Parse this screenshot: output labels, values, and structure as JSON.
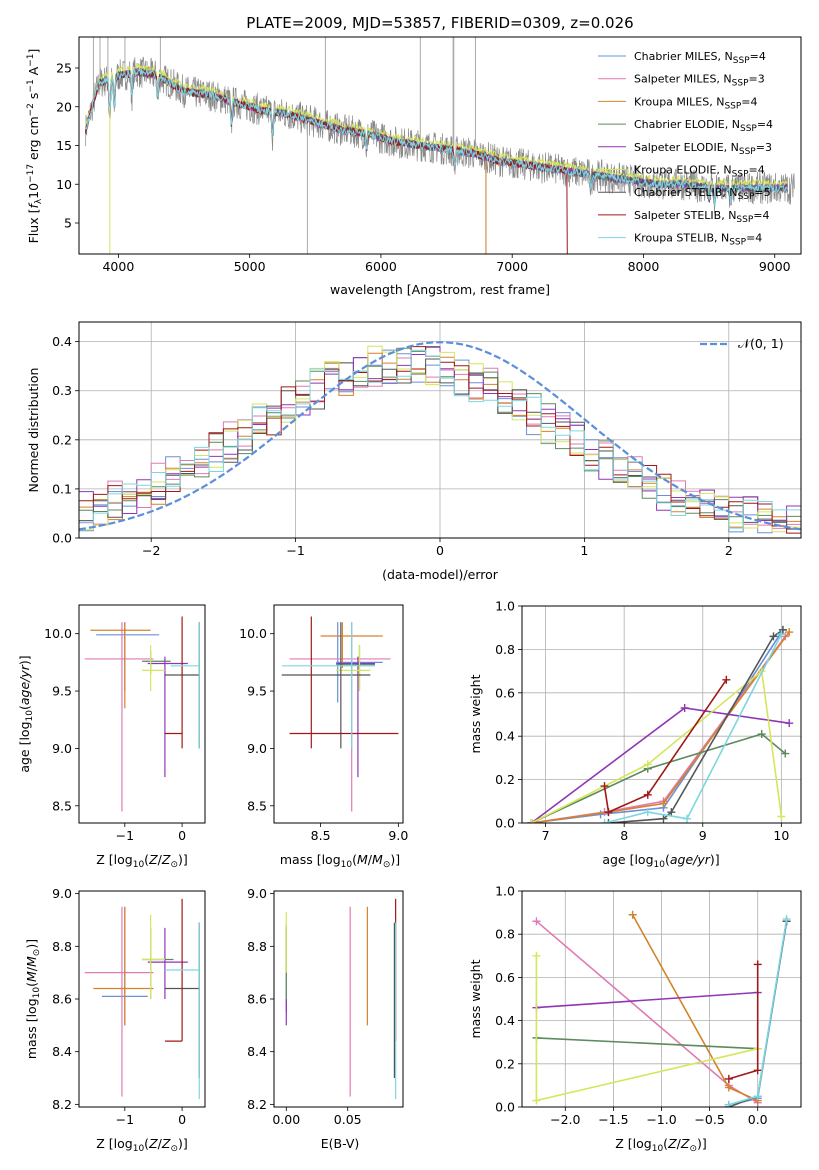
{
  "title": "PLATE=2009, MJD=53857, FIBERID=0309, z=0.026",
  "series_colors": [
    "#6a8fd8",
    "#e07ab4",
    "#d4832a",
    "#5c8a5c",
    "#9035b5",
    "#d6e65a",
    "#555555",
    "#a01818",
    "#7cd6e0"
  ],
  "models": [
    {
      "name": "Chabrier MILES, N",
      "sub": "SSP",
      "suffix": "=4"
    },
    {
      "name": "Salpeter MILES, N",
      "sub": "SSP",
      "suffix": "=3"
    },
    {
      "name": "Kroupa MILES, N",
      "sub": "SSP",
      "suffix": "=4"
    },
    {
      "name": "Chabrier ELODIE, N",
      "sub": "SSP",
      "suffix": "=4"
    },
    {
      "name": "Salpeter ELODIE, N",
      "sub": "SSP",
      "suffix": "=3"
    },
    {
      "name": "Kroupa ELODIE, N",
      "sub": "SSP",
      "suffix": "=4"
    },
    {
      "name": "Chabrier STELIB, N",
      "sub": "SSP",
      "suffix": "=5"
    },
    {
      "name": "Salpeter STELIB, N",
      "sub": "SSP",
      "suffix": "=4"
    },
    {
      "name": "Kroupa STELIB, N",
      "sub": "SSP",
      "suffix": "=4"
    }
  ],
  "panel1": {
    "xlabel": "wavelength [Angstrom, rest frame]",
    "ylabel": "Flux [f_λ 10^-17 erg cm^-2 s^-1 A^-1]",
    "xlim": [
      3700,
      9200
    ],
    "ylim": [
      1,
      29
    ],
    "xticks": [
      "4000",
      "5000",
      "6000",
      "7000",
      "8000",
      "9000"
    ],
    "yticks": [
      "5",
      "10",
      "15",
      "20",
      "25"
    ]
  },
  "panel2": {
    "xlabel": "(data-model)/error",
    "ylabel": "Normed distribution",
    "xlim": [
      -2.5,
      2.5
    ],
    "ylim": [
      0,
      0.44
    ],
    "xticks": [
      "−2",
      "−1",
      "0",
      "1",
      "2"
    ],
    "yticks": [
      "0.0",
      "0.1",
      "0.2",
      "0.3",
      "0.4"
    ],
    "legend": "𝒩(0, 1)"
  },
  "panel_age_z": {
    "xlabel": "Z [log10(Z/Z⊙)]",
    "ylabel": "age [log10(age/yr)]",
    "xlim": [
      -1.8,
      0.4
    ],
    "ylim": [
      8.35,
      10.25
    ],
    "xticks": [
      "−1",
      "0"
    ],
    "yticks": [
      "8.5",
      "9.0",
      "9.5",
      "10.0"
    ]
  },
  "panel_age_mass": {
    "xlabel": "mass [log10(M/M⊙)]",
    "ylabel": "",
    "xlim": [
      8.2,
      9.03
    ],
    "ylim": [
      8.35,
      10.25
    ],
    "xticks": [
      "8.5",
      "9.0"
    ],
    "yticks": [
      "8.5",
      "9.0",
      "9.5",
      "10.0"
    ]
  },
  "panel_mw_age": {
    "xlabel": "age [log10(age/yr)]",
    "ylabel": "mass weight",
    "xlim": [
      6.7,
      10.25
    ],
    "ylim": [
      0,
      1
    ],
    "xticks": [
      "7",
      "8",
      "9",
      "10"
    ],
    "yticks": [
      "0.0",
      "0.2",
      "0.4",
      "0.6",
      "0.8",
      "1.0"
    ]
  },
  "panel_mass_z": {
    "xlabel": "Z [log10(Z/Z⊙)]",
    "ylabel": "mass [log10(M/M⊙)]",
    "xlim": [
      -1.8,
      0.4
    ],
    "ylim": [
      8.19,
      9.01
    ],
    "xticks": [
      "−1",
      "0"
    ],
    "yticks": [
      "8.2",
      "8.4",
      "8.6",
      "8.8",
      "9.0"
    ]
  },
  "panel_mass_ebv": {
    "xlabel": "E(B-V)",
    "ylabel": "",
    "xlim": [
      -0.01,
      0.095
    ],
    "ylim": [
      8.19,
      9.01
    ],
    "xticks": [
      "0.00",
      "0.05"
    ],
    "yticks": [
      "8.2",
      "8.4",
      "8.6",
      "8.8",
      "9.0"
    ]
  },
  "panel_mw_z": {
    "xlabel": "Z [log10(Z/Z⊙)]",
    "ylabel": "mass weight",
    "xlim": [
      -2.45,
      0.45
    ],
    "ylim": [
      0,
      1
    ],
    "xticks": [
      "−2.0",
      "−1.5",
      "−1.0",
      "−0.5",
      "0.0"
    ],
    "yticks": [
      "0.0",
      "0.2",
      "0.4",
      "0.6",
      "0.8",
      "1.0"
    ]
  },
  "chart_data": [
    {
      "type": "line",
      "title": "PLATE=2009, MJD=53857, FIBERID=0309, z=0.026",
      "xlabel": "wavelength [Angstrom, rest frame]",
      "ylabel": "Flux [f_λ 10^-17 erg cm^-2 s^-1 A^-1]",
      "xlim": [
        3700,
        9200
      ],
      "ylim": [
        1,
        29
      ],
      "series": [
        {
          "x": [
            3750,
            3850,
            4000,
            4150,
            4300,
            4500,
            4700,
            4900,
            5100,
            5300,
            5500,
            5700,
            5900,
            6100,
            6300,
            6500,
            6700,
            6900,
            7100,
            7300,
            7500,
            7700,
            7900,
            8100,
            8300,
            8500,
            8700
          ],
          "y": [
            17,
            23,
            24,
            24.5,
            24,
            22,
            21.5,
            20.5,
            19.5,
            19,
            18,
            17,
            16.5,
            15.5,
            15,
            14.5,
            14,
            13,
            12.5,
            12,
            11.5,
            11,
            10.5,
            10,
            10,
            9.5,
            9.5
          ]
        }
      ]
    },
    {
      "type": "line",
      "xlabel": "(data-model)/error",
      "ylabel": "Normed distribution",
      "xlim": [
        -2.5,
        2.5
      ],
      "ylim": [
        0,
        0.44
      ],
      "series": [
        {
          "name": "𝒩(0, 1)",
          "x": [
            -2.5,
            -2,
            -1.5,
            -1,
            -0.5,
            0,
            0.5,
            1,
            1.5,
            2,
            2.5
          ],
          "y": [
            0.018,
            0.054,
            0.13,
            0.242,
            0.352,
            0.399,
            0.352,
            0.242,
            0.13,
            0.054,
            0.018
          ]
        }
      ]
    },
    {
      "type": "scatter",
      "xlabel": "age [log10(age/yr)]",
      "ylabel": "mass weight",
      "xlim": [
        6.7,
        10.25
      ],
      "ylim": [
        0,
        1
      ],
      "series": [
        {
          "x": [
            6.82,
            7.7,
            8.5,
            9.5,
            10.02
          ],
          "y": [
            0.0,
            0.04,
            0.07,
            0.6,
            0.89
          ]
        },
        {
          "x": [
            6.82,
            7.75,
            8.5,
            10.05
          ],
          "y": [
            0.0,
            0.05,
            0.1,
            0.86
          ]
        },
        {
          "x": [
            6.82,
            7.8,
            8.5,
            10.1
          ],
          "y": [
            0.0,
            0.05,
            0.09,
            0.88
          ]
        },
        {
          "x": [
            6.82,
            8.3,
            9.75,
            10.05
          ],
          "y": [
            0.0,
            0.25,
            0.41,
            0.32
          ]
        },
        {
          "x": [
            6.82,
            8.77,
            10.1
          ],
          "y": [
            0.0,
            0.53,
            0.46
          ]
        },
        {
          "x": [
            6.82,
            8.3,
            9.75,
            10.0
          ],
          "y": [
            0.0,
            0.27,
            0.7,
            0.03
          ]
        },
        {
          "x": [
            7.8,
            8.5,
            8.6,
            9.9,
            10.02
          ],
          "y": [
            0.0,
            0.02,
            0.05,
            0.86,
            0.89
          ]
        },
        {
          "x": [
            7.75,
            7.8,
            8.3,
            9.3
          ],
          "y": [
            0.17,
            0.05,
            0.13,
            0.66
          ]
        },
        {
          "x": [
            7.75,
            8.3,
            8.8,
            10.0
          ],
          "y": [
            0.0,
            0.05,
            0.02,
            0.87
          ]
        }
      ]
    },
    {
      "type": "scatter",
      "xlabel": "Z [log10(Z/Z⊙)]",
      "ylabel": "mass weight",
      "xlim": [
        -2.45,
        0.45
      ],
      "ylim": [
        0,
        1
      ],
      "series": [
        {
          "x": [
            -0.3,
            0.0,
            0.3
          ],
          "y": [
            0.01,
            0.04,
            0.86
          ]
        },
        {
          "x": [
            -2.3,
            -0.3,
            0.0
          ],
          "y": [
            0.86,
            0.1,
            0.02
          ]
        },
        {
          "x": [
            -1.3,
            -0.3,
            0.0
          ],
          "y": [
            0.89,
            0.09,
            0.03
          ]
        },
        {
          "x": [
            -2.3,
            0.0
          ],
          "y": [
            0.32,
            0.27
          ]
        },
        {
          "x": [
            -2.3,
            0.0
          ],
          "y": [
            0.46,
            0.53
          ]
        },
        {
          "x": [
            -2.3,
            -2.3,
            0.0
          ],
          "y": [
            0.7,
            0.03,
            0.27
          ]
        },
        {
          "x": [
            -0.3,
            0.0,
            0.3
          ],
          "y": [
            0.0,
            0.05,
            0.86
          ]
        },
        {
          "x": [
            -0.3,
            0.0,
            0.0
          ],
          "y": [
            0.13,
            0.17,
            0.66
          ]
        },
        {
          "x": [
            -0.3,
            0.0,
            0.3
          ],
          "y": [
            0.01,
            0.05,
            0.87
          ]
        }
      ]
    }
  ]
}
